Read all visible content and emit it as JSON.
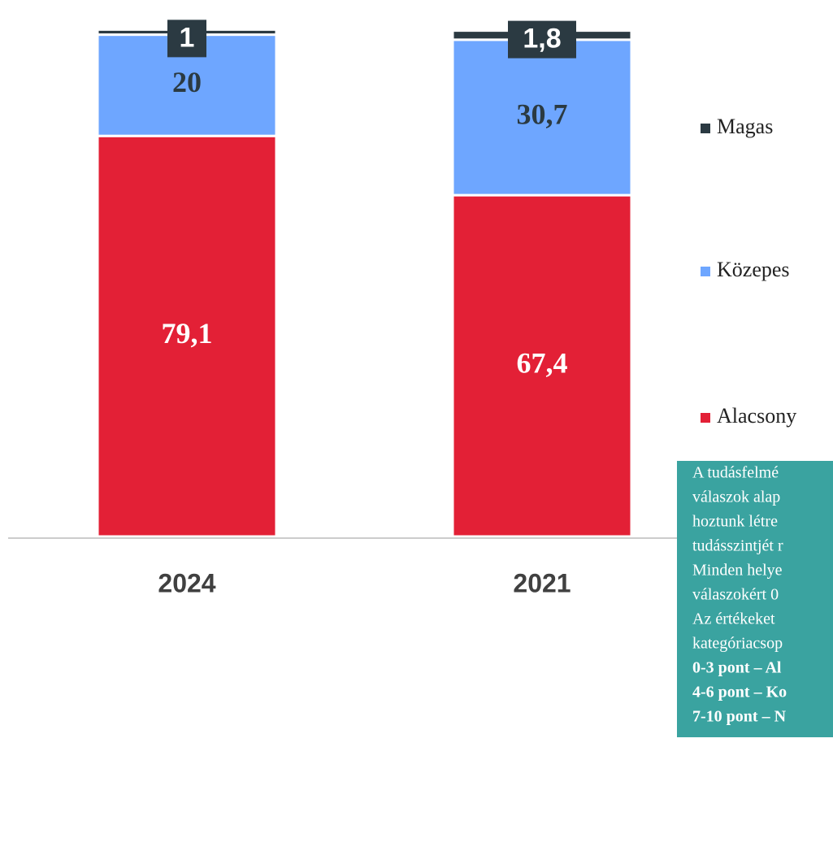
{
  "chart_data": {
    "type": "bar",
    "stacked": true,
    "categories": [
      "2024",
      "2021"
    ],
    "series": [
      {
        "name": "Alacsony",
        "color": "#e32036",
        "values": [
          79.1,
          67.4
        ],
        "value_labels": [
          "79,1",
          "67,4"
        ]
      },
      {
        "name": "Közepes",
        "color": "#6ea6ff",
        "values": [
          20,
          30.7
        ],
        "value_labels": [
          "20",
          "30,7"
        ]
      },
      {
        "name": "Magas",
        "color": "#2b3a42",
        "values": [
          1,
          1.8
        ],
        "value_labels": [
          "1",
          "1,8"
        ]
      }
    ],
    "ylim": [
      0,
      100
    ],
    "note": [
      "A tudásfelmé",
      "válaszok alap",
      "hoztunk létre",
      "tudásszintjét r",
      "Minden helye",
      "válaszokért 0",
      "Az értékeket",
      "kategóriacsop",
      "0-3 pont – Al",
      "4-6 pont – Ko",
      "7-10 pont – N"
    ],
    "note_bold_from": 8,
    "note_color": "#3aa3a0"
  }
}
